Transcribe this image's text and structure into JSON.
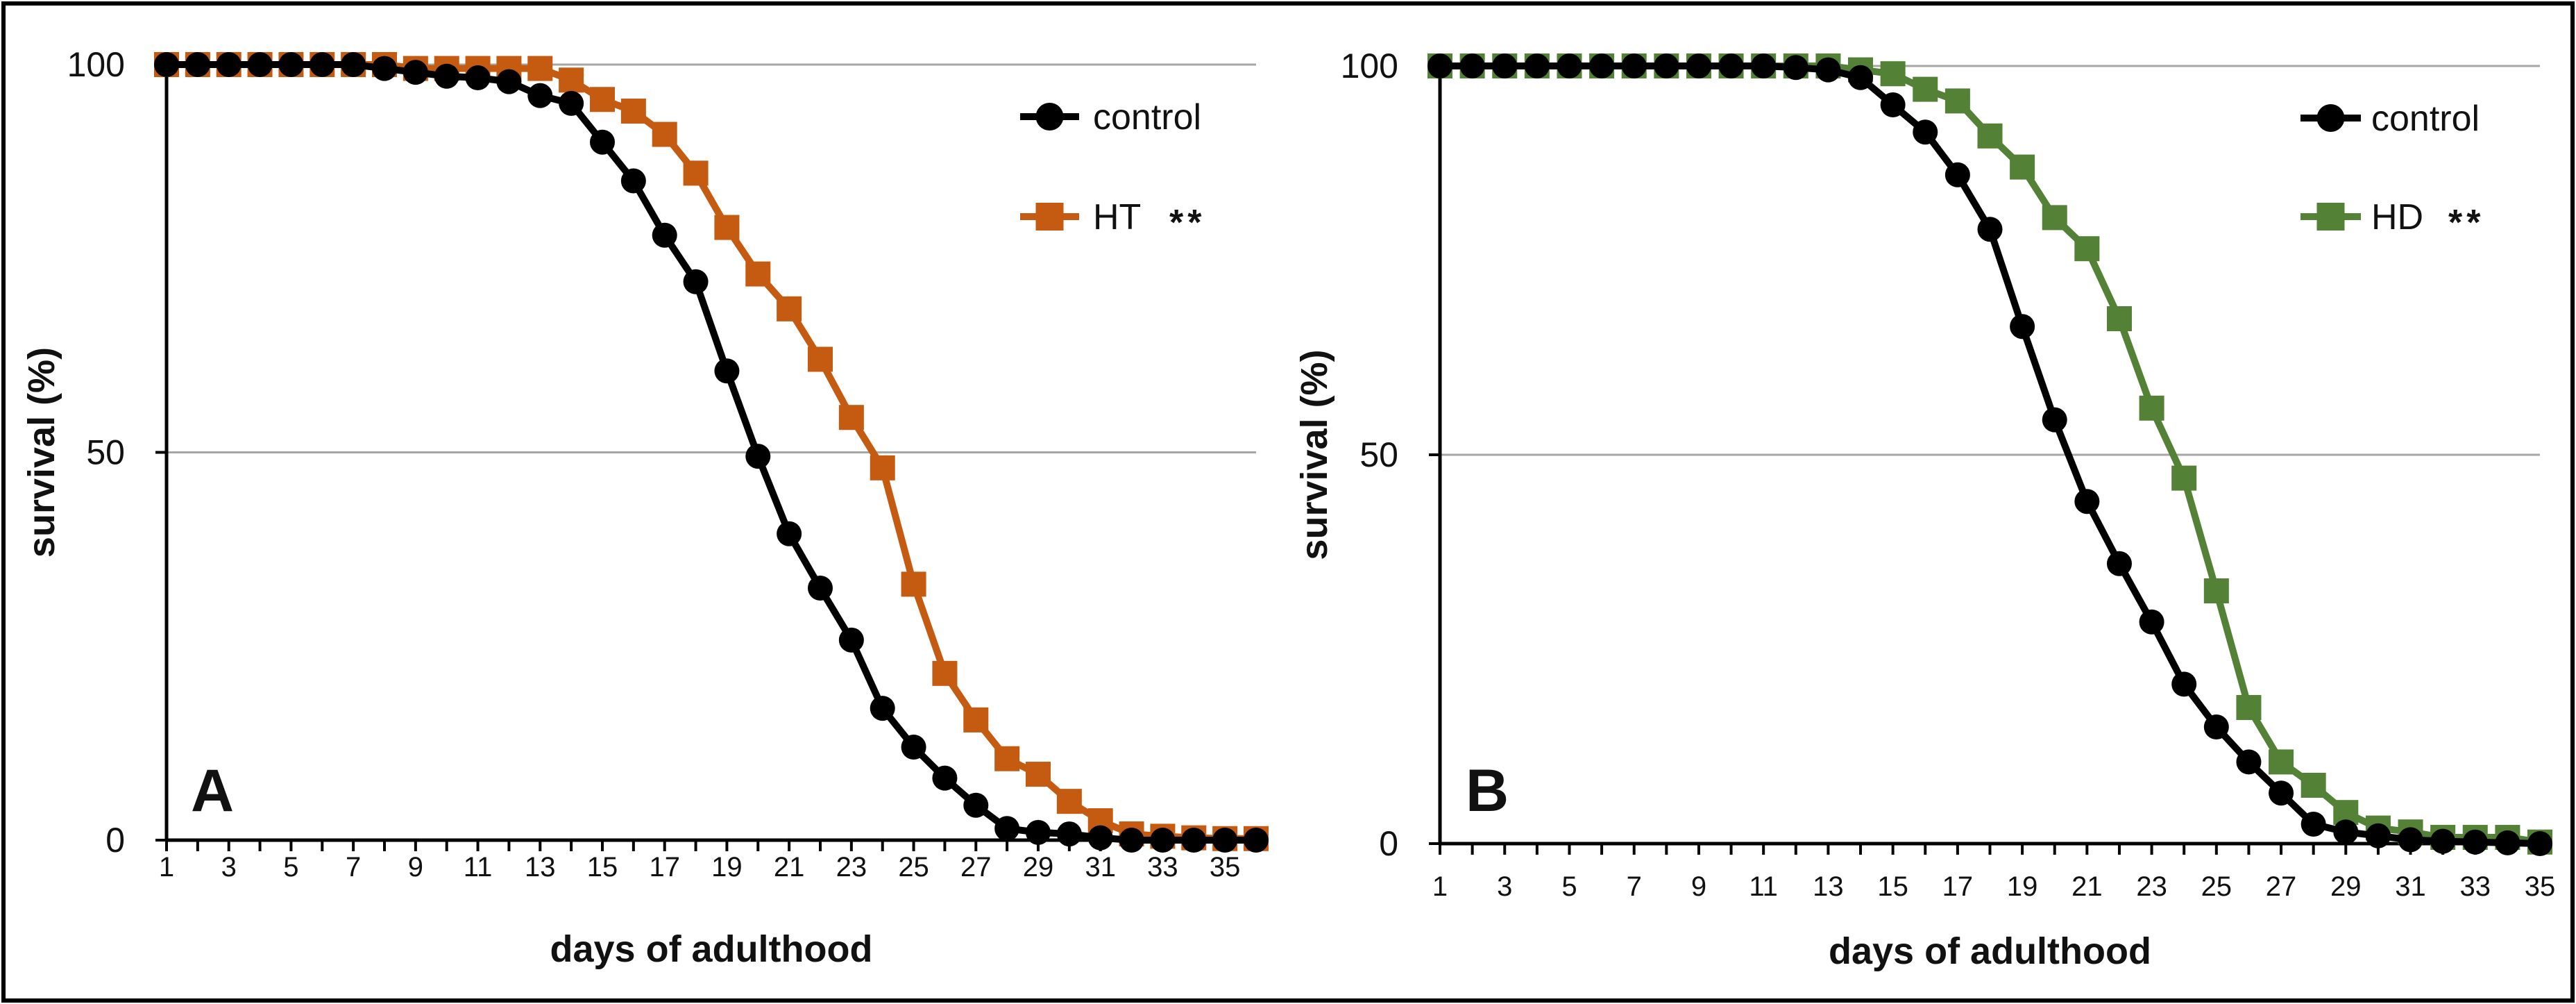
{
  "figure": {
    "colors": {
      "control": "#000000",
      "HT": "#c55a11",
      "HD": "#538135",
      "grid": "#a6a6a6",
      "axis": "#000000"
    }
  },
  "chart_data": [
    {
      "type": "line",
      "panel_label": "A",
      "xlabel": "days of adulthood",
      "ylabel": "survival (%)",
      "xlim": [
        1,
        36
      ],
      "ylim": [
        0,
        100
      ],
      "x_tick_labels": [
        "1",
        "3",
        "5",
        "7",
        "9",
        "11",
        "13",
        "15",
        "17",
        "19",
        "21",
        "23",
        "25",
        "27",
        "29",
        "31",
        "33",
        "35"
      ],
      "y_tick_labels": [
        "0",
        "50",
        "100"
      ],
      "y_gridlines": [
        50,
        100
      ],
      "legend_position": "top-right",
      "x": [
        1,
        2,
        3,
        4,
        5,
        6,
        7,
        8,
        9,
        10,
        11,
        12,
        13,
        14,
        15,
        16,
        17,
        18,
        19,
        20,
        21,
        22,
        23,
        24,
        25,
        26,
        27,
        28,
        29,
        30,
        31,
        32,
        33,
        34,
        35,
        36
      ],
      "series": [
        {
          "name": "control",
          "marker": "circle",
          "color": "#000000",
          "values": [
            100,
            100,
            100,
            100,
            100,
            100,
            100,
            99.5,
            99,
            98.5,
            98.3,
            97.8,
            96,
            95,
            90,
            85,
            78,
            72,
            60.5,
            49.5,
            39.5,
            32.5,
            25.8,
            17,
            12,
            8,
            4.5,
            1.5,
            1,
            0.8,
            0.3,
            0,
            0,
            0,
            0,
            0
          ]
        },
        {
          "name": "HT",
          "annotation": "**",
          "marker": "square",
          "color": "#c55a11",
          "values": [
            100,
            100,
            100,
            100,
            100,
            100,
            100,
            100,
            99.5,
            99.5,
            99.5,
            99.5,
            99.5,
            98,
            95.5,
            94,
            91,
            86,
            79,
            73,
            68.5,
            62,
            54.5,
            48,
            33,
            21.5,
            15.5,
            10.5,
            8.5,
            5,
            2.5,
            0.8,
            0.5,
            0.3,
            0.2,
            0.2
          ]
        }
      ]
    },
    {
      "type": "line",
      "panel_label": "B",
      "xlabel": "days of adulthood",
      "ylabel": "survival (%)",
      "xlim": [
        1,
        35
      ],
      "ylim": [
        0,
        100
      ],
      "x_tick_labels": [
        "1",
        "3",
        "5",
        "7",
        "9",
        "11",
        "13",
        "15",
        "17",
        "19",
        "21",
        "23",
        "25",
        "27",
        "29",
        "31",
        "33",
        "35"
      ],
      "y_tick_labels": [
        "0",
        "50",
        "100"
      ],
      "y_gridlines": [
        50,
        100
      ],
      "legend_position": "top-right",
      "x": [
        1,
        2,
        3,
        4,
        5,
        6,
        7,
        8,
        9,
        10,
        11,
        12,
        13,
        14,
        15,
        16,
        17,
        18,
        19,
        20,
        21,
        22,
        23,
        24,
        25,
        26,
        27,
        28,
        29,
        30,
        31,
        32,
        33,
        34,
        35
      ],
      "series": [
        {
          "name": "control",
          "marker": "circle",
          "color": "#000000",
          "values": [
            100,
            100,
            100,
            100,
            100,
            100,
            100,
            100,
            100,
            100,
            100,
            99.8,
            99.5,
            98.5,
            95,
            91.5,
            86,
            79,
            66.5,
            54.5,
            44,
            36,
            28.5,
            20.5,
            15,
            10.5,
            6.5,
            2.5,
            1.5,
            1,
            0.5,
            0.3,
            0.2,
            0.1,
            0
          ]
        },
        {
          "name": "HD",
          "annotation": "**",
          "marker": "square",
          "color": "#538135",
          "values": [
            100,
            100,
            100,
            100,
            100,
            100,
            100,
            100,
            100,
            100,
            100,
            100,
            100,
            99.5,
            99,
            97,
            95.5,
            91,
            87,
            80.5,
            76.5,
            67.5,
            56,
            47,
            32.5,
            17.5,
            10.5,
            7.5,
            4,
            2,
            1.5,
            0.8,
            0.8,
            0.8,
            0.2
          ]
        }
      ]
    }
  ]
}
